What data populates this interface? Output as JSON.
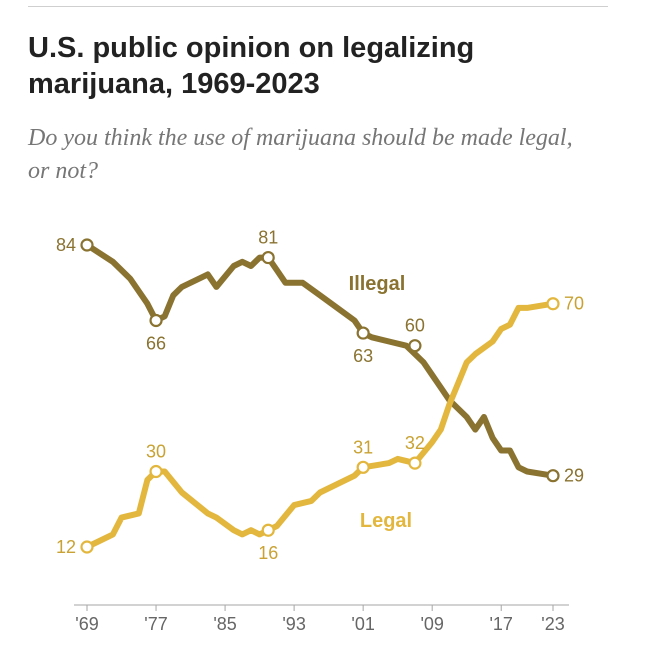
{
  "chart_data": {
    "type": "line",
    "title": "U.S. public opinion on legalizing marijuana, 1969-2023",
    "subtitle": "Do you think the use of marijuana should be made legal, or not?",
    "xlabel": "",
    "ylabel": "",
    "xlim": [
      1969,
      2023
    ],
    "ylim": [
      0,
      100
    ],
    "x_ticks": [
      {
        "year": 1969,
        "label": "'69"
      },
      {
        "year": 1977,
        "label": "'77"
      },
      {
        "year": 1985,
        "label": "'85"
      },
      {
        "year": 1993,
        "label": "'93"
      },
      {
        "year": 2001,
        "label": "'01"
      },
      {
        "year": 2009,
        "label": "'09"
      },
      {
        "year": 2017,
        "label": "'17"
      },
      {
        "year": 2023,
        "label": "'23"
      }
    ],
    "series": [
      {
        "name": "Illegal",
        "color": "#8a7331",
        "points": [
          [
            1969,
            84
          ],
          [
            1972,
            80
          ],
          [
            1974,
            76
          ],
          [
            1976,
            70
          ],
          [
            1977,
            66
          ],
          [
            1978,
            67
          ],
          [
            1979,
            72
          ],
          [
            1980,
            74
          ],
          [
            1983,
            77
          ],
          [
            1984,
            74
          ],
          [
            1986,
            79
          ],
          [
            1987,
            80
          ],
          [
            1988,
            79
          ],
          [
            1989,
            81
          ],
          [
            1990,
            81
          ],
          [
            1991,
            78
          ],
          [
            1992,
            75
          ],
          [
            1994,
            75
          ],
          [
            1996,
            72
          ],
          [
            1998,
            69
          ],
          [
            2000,
            66
          ],
          [
            2001,
            63
          ],
          [
            2002,
            62
          ],
          [
            2004,
            61
          ],
          [
            2006,
            60
          ],
          [
            2008,
            56
          ],
          [
            2009,
            53
          ],
          [
            2010,
            50
          ],
          [
            2011,
            47
          ],
          [
            2012,
            45
          ],
          [
            2013,
            43
          ],
          [
            2014,
            40
          ],
          [
            2015,
            43
          ],
          [
            2016,
            38
          ],
          [
            2017,
            35
          ],
          [
            2018,
            35
          ],
          [
            2019,
            31
          ],
          [
            2020,
            30
          ],
          [
            2023,
            29
          ]
        ],
        "labels": [
          {
            "year": 1969,
            "value": 84,
            "text": "84"
          },
          {
            "year": 1977,
            "value": 66,
            "text": "66"
          },
          {
            "year": 1990,
            "value": 81,
            "text": "81"
          },
          {
            "year": 2001,
            "value": 63,
            "text": "63"
          },
          {
            "year": 2007,
            "value": 60,
            "text": "60"
          },
          {
            "year": 2023,
            "value": 29,
            "text": "29"
          }
        ]
      },
      {
        "name": "Legal",
        "color": "#e3b73e",
        "points": [
          [
            1969,
            12
          ],
          [
            1972,
            15
          ],
          [
            1973,
            19
          ],
          [
            1975,
            20
          ],
          [
            1976,
            28
          ],
          [
            1977,
            30
          ],
          [
            1978,
            30
          ],
          [
            1980,
            25
          ],
          [
            1983,
            20
          ],
          [
            1984,
            19
          ],
          [
            1986,
            16
          ],
          [
            1987,
            15
          ],
          [
            1988,
            16
          ],
          [
            1989,
            15
          ],
          [
            1990,
            16
          ],
          [
            1991,
            17
          ],
          [
            1993,
            22
          ],
          [
            1995,
            23
          ],
          [
            1996,
            25
          ],
          [
            1998,
            27
          ],
          [
            2000,
            29
          ],
          [
            2001,
            31
          ],
          [
            2004,
            32
          ],
          [
            2005,
            33
          ],
          [
            2007,
            32
          ],
          [
            2009,
            37
          ],
          [
            2010,
            40
          ],
          [
            2011,
            46
          ],
          [
            2012,
            51
          ],
          [
            2013,
            56
          ],
          [
            2014,
            58
          ],
          [
            2016,
            61
          ],
          [
            2017,
            64
          ],
          [
            2018,
            65
          ],
          [
            2019,
            69
          ],
          [
            2020,
            69
          ],
          [
            2023,
            70
          ]
        ],
        "labels": [
          {
            "year": 1969,
            "value": 12,
            "text": "12"
          },
          {
            "year": 1977,
            "value": 30,
            "text": "30"
          },
          {
            "year": 1990,
            "value": 16,
            "text": "16"
          },
          {
            "year": 2001,
            "value": 31,
            "text": "31"
          },
          {
            "year": 2007,
            "value": 32,
            "text": "32"
          },
          {
            "year": 2023,
            "value": 70,
            "text": "70"
          }
        ]
      }
    ],
    "series_labels": {
      "illegal": "Illegal",
      "legal": "Legal"
    },
    "grid": false,
    "legend": "inline"
  }
}
